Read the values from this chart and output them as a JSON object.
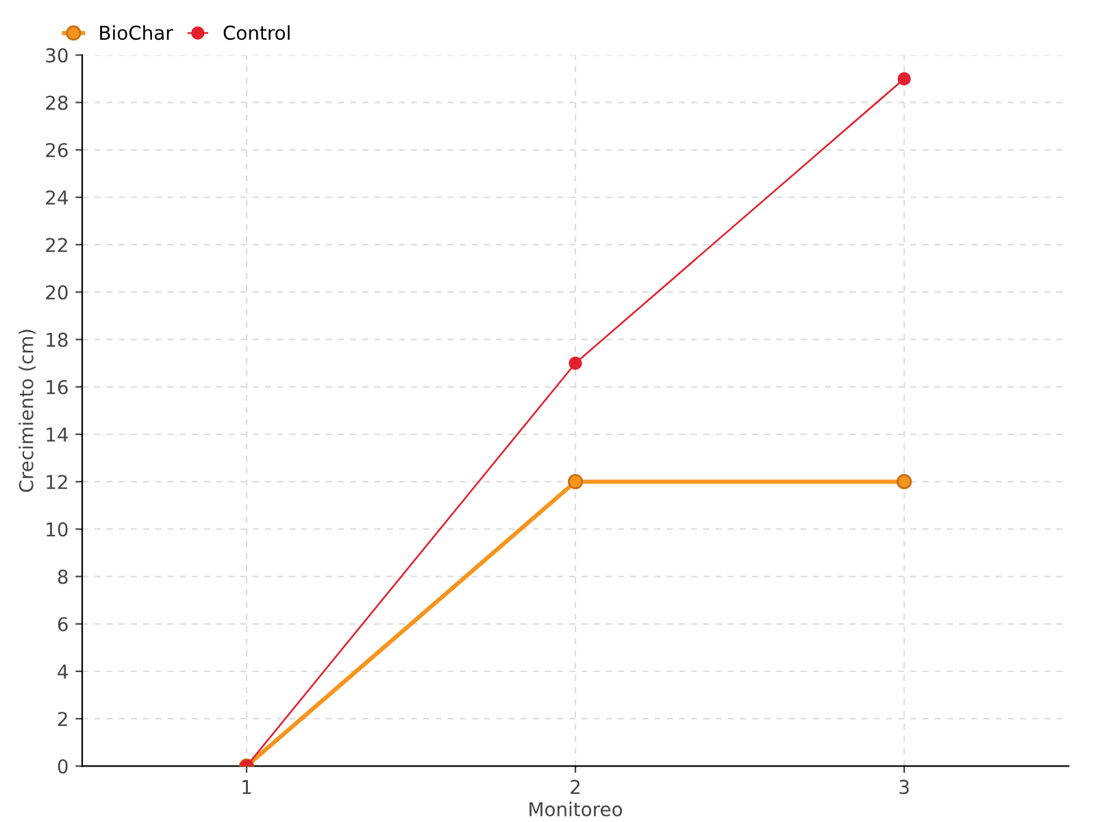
{
  "chart_data": {
    "type": "line",
    "xlabel": "Monitoreo",
    "ylabel": "Crecimiento (cm)",
    "categories": [
      "1",
      "2",
      "3"
    ],
    "series": [
      {
        "name": "BioChar",
        "color": "#f7941d",
        "values": [
          0,
          12,
          12
        ]
      },
      {
        "name": "Control",
        "color": "#e3202f",
        "values": [
          0,
          17,
          29
        ]
      }
    ],
    "ylim": [
      0,
      30
    ],
    "yticks": [
      0,
      2,
      4,
      6,
      8,
      10,
      12,
      14,
      16,
      18,
      20,
      22,
      24,
      26,
      28,
      30
    ],
    "grid": true,
    "legend": "top left",
    "marker": "circle",
    "line_style": "solid"
  }
}
